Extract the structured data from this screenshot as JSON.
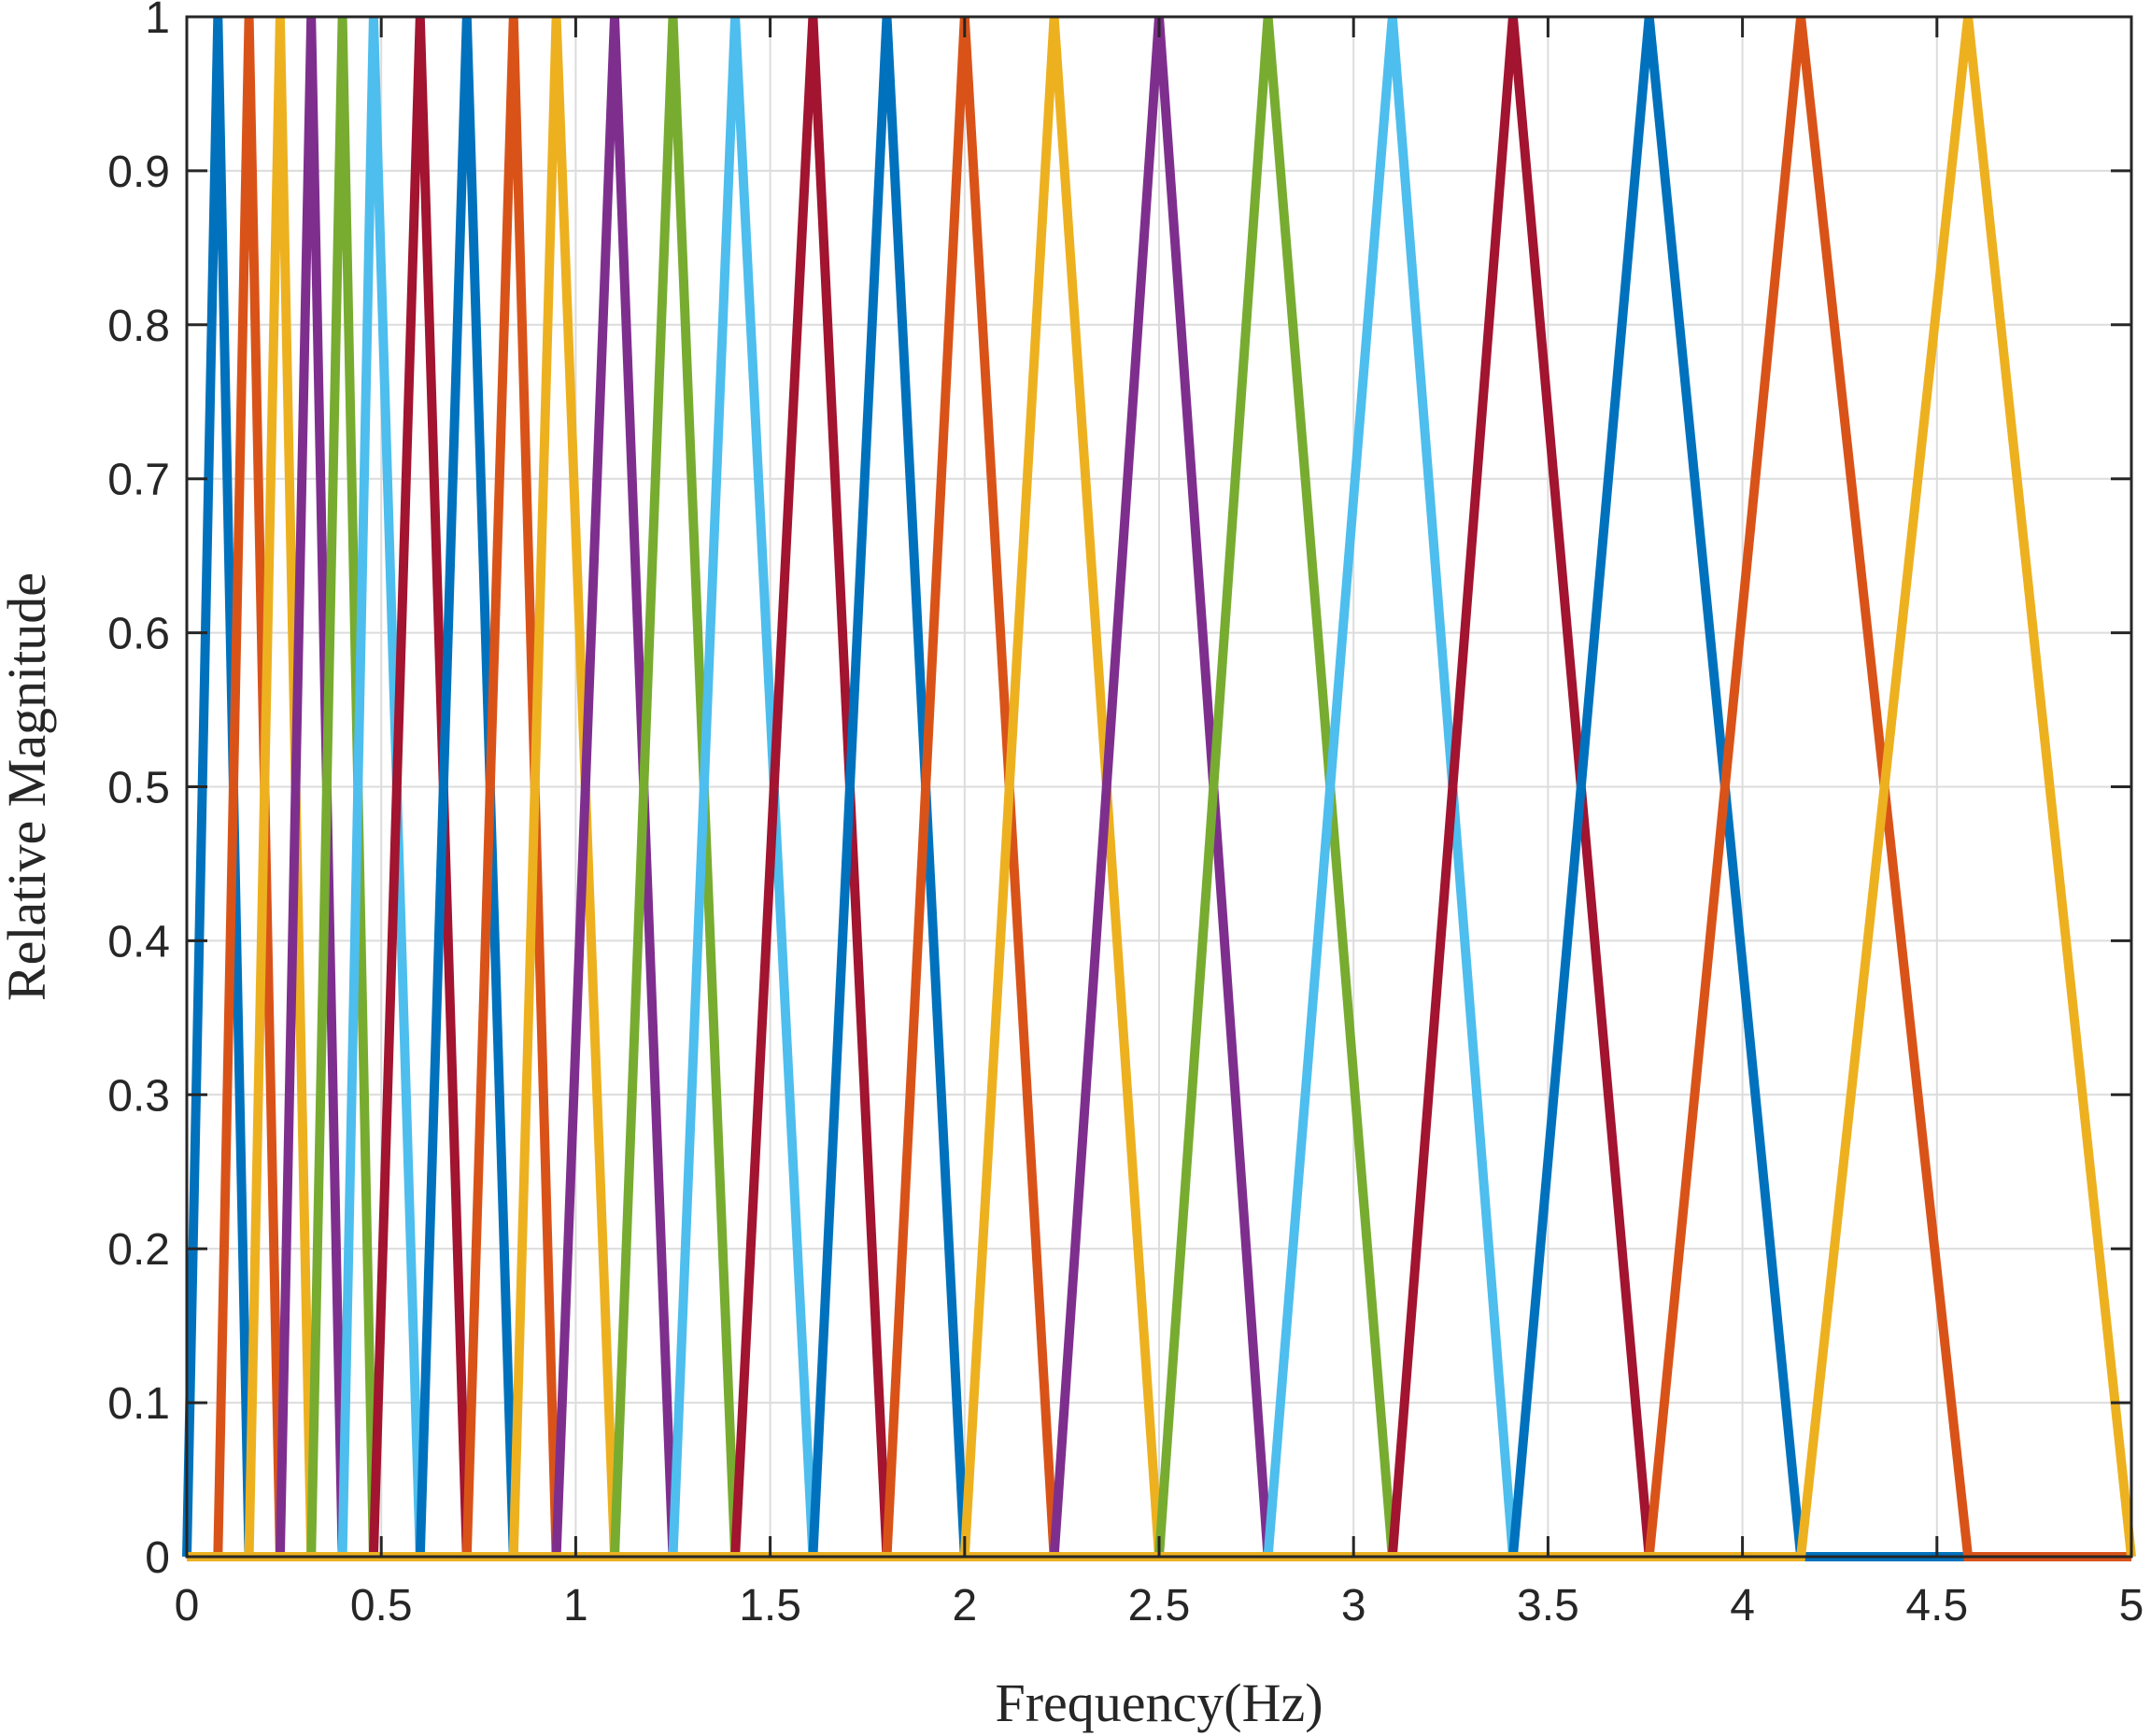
{
  "chart_data": {
    "type": "line",
    "title": "",
    "xlabel": "Frequency(Hz)",
    "ylabel": "Relative Magnitude",
    "xlim": [
      0,
      5
    ],
    "ylim": [
      0,
      1
    ],
    "xticks": [
      0,
      0.5,
      1,
      1.5,
      2,
      2.5,
      3,
      3.5,
      4,
      4.5,
      5
    ],
    "xtick_labels": [
      "0",
      "0.5",
      "1",
      "1.5",
      "2",
      "2.5",
      "3",
      "3.5",
      "4",
      "4.5",
      "5"
    ],
    "yticks": [
      0,
      0.1,
      0.2,
      0.3,
      0.4,
      0.5,
      0.6,
      0.7,
      0.8,
      0.9,
      1
    ],
    "ytick_labels": [
      "0",
      "0.1",
      "0.2",
      "0.3",
      "0.4",
      "0.5",
      "0.6",
      "0.7",
      "0.8",
      "0.9",
      "1"
    ],
    "grid": true,
    "legend": "none",
    "filter_peaks_hz": [
      0,
      0.08,
      0.16,
      0.24,
      0.32,
      0.4,
      0.48,
      0.6,
      0.72,
      0.84,
      0.95,
      1.1,
      1.25,
      1.41,
      1.61,
      1.8,
      2.0,
      2.23,
      2.5,
      2.78,
      3.1,
      3.41,
      3.76,
      4.15,
      4.58,
      5.0
    ],
    "series": [
      {
        "color": "#0072BD",
        "x": [
          0,
          0.08,
          0.16,
          5
        ],
        "y": [
          0,
          1,
          0,
          0
        ]
      },
      {
        "color": "#D95319",
        "x": [
          0,
          0.08,
          0.16,
          0.24,
          5
        ],
        "y": [
          0,
          0,
          1,
          0,
          0
        ]
      },
      {
        "color": "#EDB120",
        "x": [
          0,
          0.16,
          0.24,
          0.32,
          5
        ],
        "y": [
          0,
          0,
          1,
          0,
          0
        ]
      },
      {
        "color": "#7E2F8E",
        "x": [
          0,
          0.24,
          0.32,
          0.4,
          5
        ],
        "y": [
          0,
          0,
          1,
          0,
          0
        ]
      },
      {
        "color": "#77AC30",
        "x": [
          0,
          0.32,
          0.4,
          0.48,
          5
        ],
        "y": [
          0,
          0,
          1,
          0,
          0
        ]
      },
      {
        "color": "#4DBEEE",
        "x": [
          0,
          0.4,
          0.48,
          0.6,
          5
        ],
        "y": [
          0,
          0,
          1,
          0,
          0
        ]
      },
      {
        "color": "#A2142F",
        "x": [
          0,
          0.48,
          0.6,
          0.72,
          5
        ],
        "y": [
          0,
          0,
          1,
          0,
          0
        ]
      },
      {
        "color": "#0072BD",
        "x": [
          0,
          0.6,
          0.72,
          0.84,
          5
        ],
        "y": [
          0,
          0,
          1,
          0,
          0
        ]
      },
      {
        "color": "#D95319",
        "x": [
          0,
          0.72,
          0.84,
          0.95,
          5
        ],
        "y": [
          0,
          0,
          1,
          0,
          0
        ]
      },
      {
        "color": "#EDB120",
        "x": [
          0,
          0.84,
          0.95,
          1.1,
          5
        ],
        "y": [
          0,
          0,
          1,
          0,
          0
        ]
      },
      {
        "color": "#7E2F8E",
        "x": [
          0,
          0.95,
          1.1,
          1.25,
          5
        ],
        "y": [
          0,
          0,
          1,
          0,
          0
        ]
      },
      {
        "color": "#77AC30",
        "x": [
          0,
          1.1,
          1.25,
          1.41,
          5
        ],
        "y": [
          0,
          0,
          1,
          0,
          0
        ]
      },
      {
        "color": "#4DBEEE",
        "x": [
          0,
          1.25,
          1.41,
          1.61,
          5
        ],
        "y": [
          0,
          0,
          1,
          0,
          0
        ]
      },
      {
        "color": "#A2142F",
        "x": [
          0,
          1.41,
          1.61,
          1.8,
          5
        ],
        "y": [
          0,
          0,
          1,
          0,
          0
        ]
      },
      {
        "color": "#0072BD",
        "x": [
          0,
          1.61,
          1.8,
          2.0,
          5
        ],
        "y": [
          0,
          0,
          1,
          0,
          0
        ]
      },
      {
        "color": "#D95319",
        "x": [
          0,
          1.8,
          2.0,
          2.23,
          5
        ],
        "y": [
          0,
          0,
          1,
          0,
          0
        ]
      },
      {
        "color": "#EDB120",
        "x": [
          0,
          2.0,
          2.23,
          2.5,
          5
        ],
        "y": [
          0,
          0,
          1,
          0,
          0
        ]
      },
      {
        "color": "#7E2F8E",
        "x": [
          0,
          2.23,
          2.5,
          2.78,
          5
        ],
        "y": [
          0,
          0,
          1,
          0,
          0
        ]
      },
      {
        "color": "#77AC30",
        "x": [
          0,
          2.5,
          2.78,
          3.1,
          5
        ],
        "y": [
          0,
          0,
          1,
          0,
          0
        ]
      },
      {
        "color": "#4DBEEE",
        "x": [
          0,
          2.78,
          3.1,
          3.41,
          5
        ],
        "y": [
          0,
          0,
          1,
          0,
          0
        ]
      },
      {
        "color": "#A2142F",
        "x": [
          0,
          3.1,
          3.41,
          3.76,
          5
        ],
        "y": [
          0,
          0,
          1,
          0,
          0
        ]
      },
      {
        "color": "#0072BD",
        "x": [
          0,
          3.41,
          3.76,
          4.15,
          5
        ],
        "y": [
          0,
          0,
          1,
          0,
          0
        ]
      },
      {
        "color": "#D95319",
        "x": [
          0,
          3.76,
          4.15,
          4.58,
          5
        ],
        "y": [
          0,
          0,
          1,
          0,
          0
        ]
      },
      {
        "color": "#EDB120",
        "x": [
          0,
          4.15,
          4.58,
          5.0
        ],
        "y": [
          0,
          0,
          1,
          0
        ]
      }
    ]
  }
}
